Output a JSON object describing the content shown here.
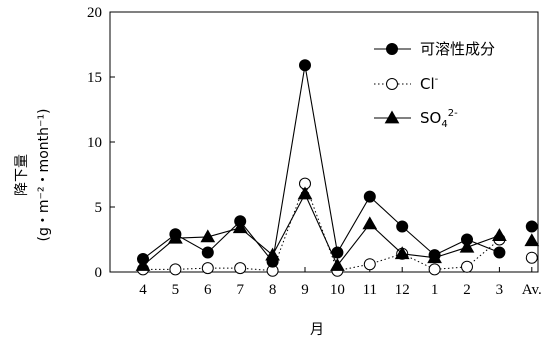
{
  "chart_data": {
    "type": "line",
    "title": "",
    "xlabel": "月",
    "ylabel_main": "降下量",
    "ylabel_unit": "(g・m⁻²・month⁻¹)",
    "categories": [
      "4",
      "5",
      "6",
      "7",
      "8",
      "9",
      "10",
      "11",
      "12",
      "1",
      "2",
      "3"
    ],
    "avg_label": "Av.",
    "yticks": [
      "0",
      "5",
      "10",
      "15",
      "20"
    ],
    "ylim": [
      0,
      20
    ],
    "legend_position": "top-right",
    "series": [
      {
        "name": "可溶性成分",
        "marker": "filled-circle",
        "line": "solid",
        "values": [
          1.0,
          2.9,
          1.5,
          3.9,
          0.8,
          15.9,
          1.5,
          5.8,
          3.5,
          1.3,
          2.5,
          1.5
        ],
        "avg": 3.5
      },
      {
        "name": "Cl",
        "superscript": "-",
        "marker": "open-circle",
        "line": "dotted",
        "values": [
          0.2,
          0.2,
          0.3,
          0.3,
          0.1,
          6.8,
          0.1,
          0.6,
          1.4,
          0.2,
          0.4,
          2.5
        ],
        "avg": 1.1
      },
      {
        "name": "SO",
        "subscript": "4",
        "superscript": "2-",
        "marker": "filled-triangle",
        "line": "solid",
        "values": [
          0.5,
          2.6,
          2.7,
          3.4,
          1.3,
          6.0,
          0.5,
          3.7,
          1.4,
          1.1,
          1.9,
          2.8
        ],
        "avg": 2.4
      }
    ]
  }
}
